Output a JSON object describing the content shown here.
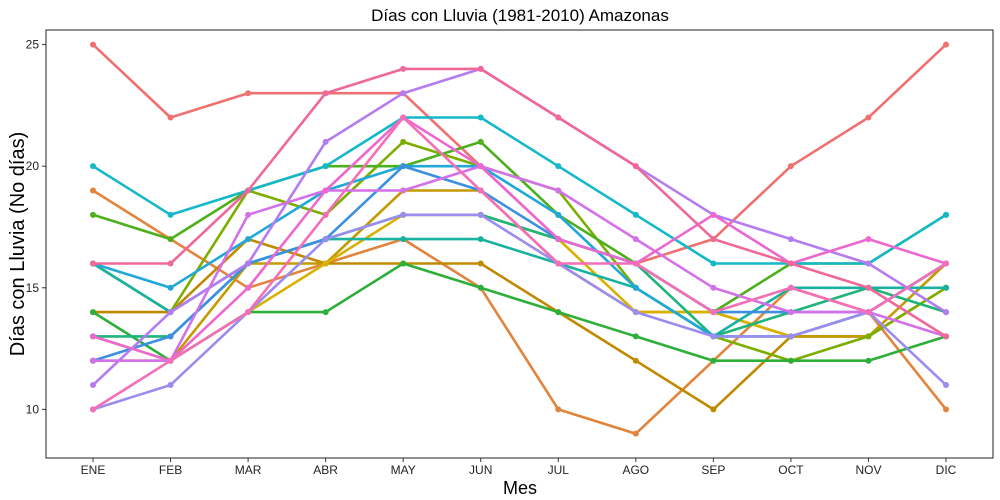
{
  "chart_data": {
    "type": "line",
    "title": "Días con Lluvia (1981-2010)  Amazonas",
    "xlabel": "Mes",
    "ylabel": "Días con Lluvia (No días)",
    "categories": [
      "ENE",
      "FEB",
      "MAR",
      "ABR",
      "MAY",
      "JUN",
      "JUL",
      "AGO",
      "SEP",
      "OCT",
      "NOV",
      "DIC"
    ],
    "yticks": [
      10,
      15,
      20,
      25
    ],
    "ylim": [
      8,
      25.6
    ],
    "grid": false,
    "legend": "none",
    "series": [
      {
        "color": "#F07070",
        "values": [
          25,
          22,
          23,
          23,
          23,
          20,
          17,
          16,
          17,
          20,
          22,
          25
        ]
      },
      {
        "color": "#E2843C",
        "values": [
          19,
          17,
          15,
          16,
          17,
          15,
          10,
          9,
          12,
          15,
          14,
          10
        ]
      },
      {
        "color": "#C08A00",
        "values": [
          14,
          14,
          17,
          16,
          16,
          16,
          14,
          12,
          10,
          13,
          13,
          15
        ]
      },
      {
        "color": "#C49A00",
        "values": [
          13,
          12,
          16,
          16,
          19,
          19,
          16,
          14,
          14,
          13,
          13,
          16
        ]
      },
      {
        "color": "#D9B000",
        "values": [
          12,
          12,
          14,
          16,
          18,
          18,
          17,
          14,
          14,
          13,
          14,
          16
        ]
      },
      {
        "color": "#7CAE00",
        "values": [
          16,
          14,
          19,
          18,
          21,
          20,
          19,
          15,
          13,
          12,
          13,
          15
        ]
      },
      {
        "color": "#4CAF1C",
        "values": [
          18,
          17,
          19,
          20,
          20,
          21,
          18,
          16,
          14,
          16,
          16,
          18
        ]
      },
      {
        "color": "#2EAF3A",
        "values": [
          14,
          12,
          14,
          14,
          16,
          15,
          14,
          13,
          12,
          12,
          12,
          13
        ]
      },
      {
        "color": "#1FB47A",
        "values": [
          13,
          13,
          16,
          17,
          18,
          18,
          17,
          16,
          13,
          14,
          15,
          14
        ]
      },
      {
        "color": "#19B2A0",
        "values": [
          16,
          14,
          16,
          17,
          17,
          17,
          16,
          15,
          13,
          15,
          15,
          15
        ]
      },
      {
        "color": "#14B8C8",
        "values": [
          20,
          18,
          19,
          20,
          22,
          22,
          20,
          18,
          16,
          16,
          16,
          18
        ]
      },
      {
        "color": "#20A8D8",
        "values": [
          16,
          15,
          17,
          19,
          20,
          20,
          18,
          15,
          13,
          13,
          14,
          16
        ]
      },
      {
        "color": "#3D8FE0",
        "values": [
          12,
          13,
          16,
          17,
          20,
          19,
          17,
          16,
          14,
          14,
          14,
          16
        ]
      },
      {
        "color": "#9B8CF0",
        "values": [
          10,
          11,
          14,
          17,
          18,
          18,
          16,
          14,
          13,
          13,
          14,
          11
        ]
      },
      {
        "color": "#B57BF0",
        "values": [
          11,
          14,
          16,
          21,
          23,
          24,
          22,
          20,
          18,
          17,
          16,
          14
        ]
      },
      {
        "color": "#D470E8",
        "values": [
          12,
          12,
          18,
          19,
          19,
          20,
          19,
          17,
          15,
          14,
          14,
          13
        ]
      },
      {
        "color": "#EC68D0",
        "values": [
          13,
          12,
          15,
          19,
          22,
          20,
          17,
          16,
          18,
          16,
          17,
          16
        ]
      },
      {
        "color": "#F0689A",
        "values": [
          16,
          16,
          19,
          23,
          24,
          24,
          22,
          20,
          17,
          16,
          15,
          13
        ]
      },
      {
        "color": "#F46FB8",
        "values": [
          10,
          12,
          14,
          18,
          22,
          19,
          16,
          16,
          14,
          15,
          14,
          16
        ]
      }
    ]
  }
}
